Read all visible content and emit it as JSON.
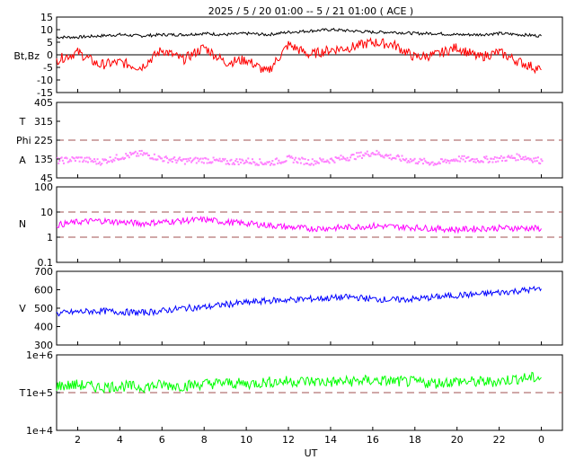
{
  "title": "2025 /  5 / 20   01:00 --  5 / 21   01:00 ( ACE )",
  "xlabel": "UT",
  "x_ticks": [
    "2",
    "4",
    "6",
    "8",
    "10",
    "12",
    "14",
    "16",
    "18",
    "20",
    "22",
    "0"
  ],
  "colors": {
    "bt": "#000000",
    "bz": "#ff0000",
    "phi": "#a0a0a0",
    "theta": "#ff80ff",
    "density": "#ff00ff",
    "speed": "#0000ff",
    "temperature": "#00ff00",
    "reference_line": "#a05050"
  },
  "chart_data": [
    {
      "type": "line",
      "panel": "magnetic_field",
      "ylabel": "Bt,Bz",
      "y_ticks": [
        "15",
        "10",
        "5",
        "0",
        "-5",
        "-10",
        "-15"
      ],
      "ylim": [
        -15,
        15
      ],
      "x": [
        1,
        2,
        3,
        4,
        5,
        6,
        7,
        8,
        9,
        10,
        11,
        12,
        13,
        14,
        15,
        16,
        17,
        18,
        19,
        20,
        21,
        22,
        23,
        24
      ],
      "series": [
        {
          "name": "Bt",
          "values": [
            7,
            7,
            7.5,
            8,
            7.5,
            8,
            8,
            8.5,
            8,
            8.5,
            8,
            9,
            9.5,
            10,
            9.5,
            9,
            9,
            8.5,
            8.5,
            8,
            8,
            8.5,
            8,
            7.5
          ]
        },
        {
          "name": "Bz",
          "values": [
            -2,
            1,
            -4,
            -3,
            -5,
            2,
            -2,
            3,
            -3,
            -2,
            -7,
            4,
            0,
            2,
            3,
            5,
            4,
            -1,
            0,
            3,
            -1,
            1,
            -3,
            -6
          ]
        }
      ]
    },
    {
      "type": "scatter",
      "panel": "angles",
      "ylabels": [
        "T",
        "Phi",
        "A"
      ],
      "y_ticks": [
        "405",
        "315",
        "225",
        "135",
        "45"
      ],
      "ylim": [
        45,
        405
      ],
      "x": [
        1,
        2,
        3,
        4,
        5,
        6,
        7,
        8,
        9,
        10,
        11,
        12,
        13,
        14,
        15,
        16,
        17,
        18,
        19,
        20,
        21,
        22,
        23,
        24
      ],
      "series": [
        {
          "values": [
            130,
            140,
            125,
            150,
            165,
            140,
            130,
            135,
            125,
            130,
            120,
            140,
            125,
            135,
            150,
            170,
            145,
            130,
            120,
            140,
            135,
            140,
            150,
            130
          ]
        }
      ]
    },
    {
      "type": "line",
      "panel": "density",
      "ylabel": "N",
      "y_ticks": [
        "100",
        "10",
        "1",
        "0.1"
      ],
      "ylim": [
        0.1,
        100
      ],
      "yscale": "log",
      "x": [
        1,
        2,
        3,
        4,
        5,
        6,
        7,
        8,
        9,
        10,
        11,
        12,
        13,
        14,
        15,
        16,
        17,
        18,
        19,
        20,
        21,
        22,
        23,
        24
      ],
      "series": [
        {
          "values": [
            3,
            4,
            4.5,
            4,
            3.5,
            4,
            4.5,
            5,
            4,
            3.5,
            3,
            2.5,
            2.2,
            2.3,
            2.5,
            2.8,
            2.6,
            2.4,
            2.2,
            2,
            2.2,
            2.3,
            2.3,
            2.2
          ]
        }
      ]
    },
    {
      "type": "line",
      "panel": "speed",
      "ylabel": "V",
      "y_ticks": [
        "700",
        "600",
        "500",
        "400",
        "300"
      ],
      "ylim": [
        300,
        700
      ],
      "x": [
        1,
        2,
        3,
        4,
        5,
        6,
        7,
        8,
        9,
        10,
        11,
        12,
        13,
        14,
        15,
        16,
        17,
        18,
        19,
        20,
        21,
        22,
        23,
        24
      ],
      "series": [
        {
          "values": [
            470,
            480,
            485,
            480,
            475,
            485,
            500,
            505,
            520,
            530,
            540,
            545,
            550,
            555,
            560,
            550,
            545,
            550,
            560,
            570,
            575,
            585,
            595,
            605
          ]
        }
      ]
    },
    {
      "type": "line",
      "panel": "temperature",
      "ylabel": "T",
      "y_ticks": [
        "1e+6",
        "1e+5",
        "1e+4"
      ],
      "ylim": [
        10000,
        1000000
      ],
      "yscale": "log",
      "x": [
        1,
        2,
        3,
        4,
        5,
        6,
        7,
        8,
        9,
        10,
        11,
        12,
        13,
        14,
        15,
        16,
        17,
        18,
        19,
        20,
        21,
        22,
        23,
        24
      ],
      "series": [
        {
          "values": [
            150000,
            160000,
            140000,
            150000,
            140000,
            160000,
            150000,
            170000,
            180000,
            170000,
            190000,
            200000,
            200000,
            190000,
            200000,
            210000,
            200000,
            190000,
            180000,
            200000,
            190000,
            200000,
            240000,
            250000
          ]
        }
      ]
    }
  ]
}
